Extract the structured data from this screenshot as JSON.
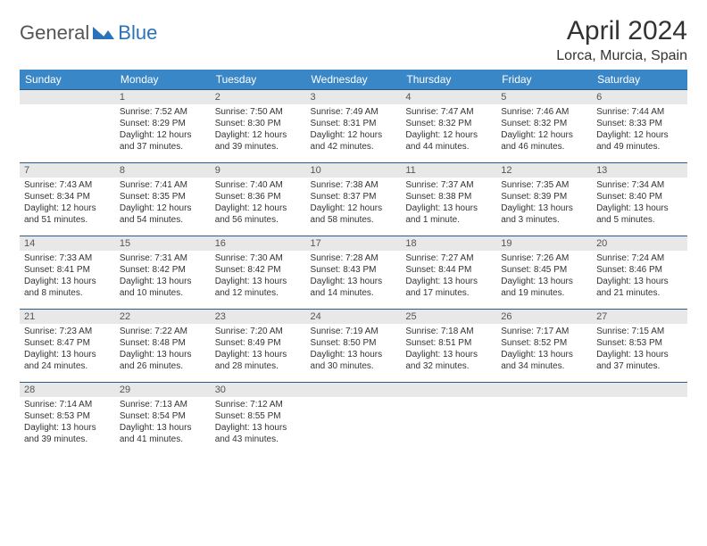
{
  "logo": {
    "text1": "General",
    "text2": "Blue"
  },
  "title": "April 2024",
  "location": "Lorca, Murcia, Spain",
  "colors": {
    "header_bg": "#3a87c8",
    "header_text": "#ffffff",
    "daynum_bg": "#e8e8e8",
    "border": "#2a5b8a",
    "logo_blue": "#2a73b8",
    "text": "#333333"
  },
  "weekdays": [
    "Sunday",
    "Monday",
    "Tuesday",
    "Wednesday",
    "Thursday",
    "Friday",
    "Saturday"
  ],
  "weeks": [
    [
      null,
      {
        "n": "1",
        "sr": "7:52 AM",
        "ss": "8:29 PM",
        "dl": "12 hours and 37 minutes."
      },
      {
        "n": "2",
        "sr": "7:50 AM",
        "ss": "8:30 PM",
        "dl": "12 hours and 39 minutes."
      },
      {
        "n": "3",
        "sr": "7:49 AM",
        "ss": "8:31 PM",
        "dl": "12 hours and 42 minutes."
      },
      {
        "n": "4",
        "sr": "7:47 AM",
        "ss": "8:32 PM",
        "dl": "12 hours and 44 minutes."
      },
      {
        "n": "5",
        "sr": "7:46 AM",
        "ss": "8:32 PM",
        "dl": "12 hours and 46 minutes."
      },
      {
        "n": "6",
        "sr": "7:44 AM",
        "ss": "8:33 PM",
        "dl": "12 hours and 49 minutes."
      }
    ],
    [
      {
        "n": "7",
        "sr": "7:43 AM",
        "ss": "8:34 PM",
        "dl": "12 hours and 51 minutes."
      },
      {
        "n": "8",
        "sr": "7:41 AM",
        "ss": "8:35 PM",
        "dl": "12 hours and 54 minutes."
      },
      {
        "n": "9",
        "sr": "7:40 AM",
        "ss": "8:36 PM",
        "dl": "12 hours and 56 minutes."
      },
      {
        "n": "10",
        "sr": "7:38 AM",
        "ss": "8:37 PM",
        "dl": "12 hours and 58 minutes."
      },
      {
        "n": "11",
        "sr": "7:37 AM",
        "ss": "8:38 PM",
        "dl": "13 hours and 1 minute."
      },
      {
        "n": "12",
        "sr": "7:35 AM",
        "ss": "8:39 PM",
        "dl": "13 hours and 3 minutes."
      },
      {
        "n": "13",
        "sr": "7:34 AM",
        "ss": "8:40 PM",
        "dl": "13 hours and 5 minutes."
      }
    ],
    [
      {
        "n": "14",
        "sr": "7:33 AM",
        "ss": "8:41 PM",
        "dl": "13 hours and 8 minutes."
      },
      {
        "n": "15",
        "sr": "7:31 AM",
        "ss": "8:42 PM",
        "dl": "13 hours and 10 minutes."
      },
      {
        "n": "16",
        "sr": "7:30 AM",
        "ss": "8:42 PM",
        "dl": "13 hours and 12 minutes."
      },
      {
        "n": "17",
        "sr": "7:28 AM",
        "ss": "8:43 PM",
        "dl": "13 hours and 14 minutes."
      },
      {
        "n": "18",
        "sr": "7:27 AM",
        "ss": "8:44 PM",
        "dl": "13 hours and 17 minutes."
      },
      {
        "n": "19",
        "sr": "7:26 AM",
        "ss": "8:45 PM",
        "dl": "13 hours and 19 minutes."
      },
      {
        "n": "20",
        "sr": "7:24 AM",
        "ss": "8:46 PM",
        "dl": "13 hours and 21 minutes."
      }
    ],
    [
      {
        "n": "21",
        "sr": "7:23 AM",
        "ss": "8:47 PM",
        "dl": "13 hours and 24 minutes."
      },
      {
        "n": "22",
        "sr": "7:22 AM",
        "ss": "8:48 PM",
        "dl": "13 hours and 26 minutes."
      },
      {
        "n": "23",
        "sr": "7:20 AM",
        "ss": "8:49 PM",
        "dl": "13 hours and 28 minutes."
      },
      {
        "n": "24",
        "sr": "7:19 AM",
        "ss": "8:50 PM",
        "dl": "13 hours and 30 minutes."
      },
      {
        "n": "25",
        "sr": "7:18 AM",
        "ss": "8:51 PM",
        "dl": "13 hours and 32 minutes."
      },
      {
        "n": "26",
        "sr": "7:17 AM",
        "ss": "8:52 PM",
        "dl": "13 hours and 34 minutes."
      },
      {
        "n": "27",
        "sr": "7:15 AM",
        "ss": "8:53 PM",
        "dl": "13 hours and 37 minutes."
      }
    ],
    [
      {
        "n": "28",
        "sr": "7:14 AM",
        "ss": "8:53 PM",
        "dl": "13 hours and 39 minutes."
      },
      {
        "n": "29",
        "sr": "7:13 AM",
        "ss": "8:54 PM",
        "dl": "13 hours and 41 minutes."
      },
      {
        "n": "30",
        "sr": "7:12 AM",
        "ss": "8:55 PM",
        "dl": "13 hours and 43 minutes."
      },
      null,
      null,
      null,
      null
    ]
  ],
  "labels": {
    "sunrise": "Sunrise: ",
    "sunset": "Sunset: ",
    "daylight": "Daylight: "
  }
}
